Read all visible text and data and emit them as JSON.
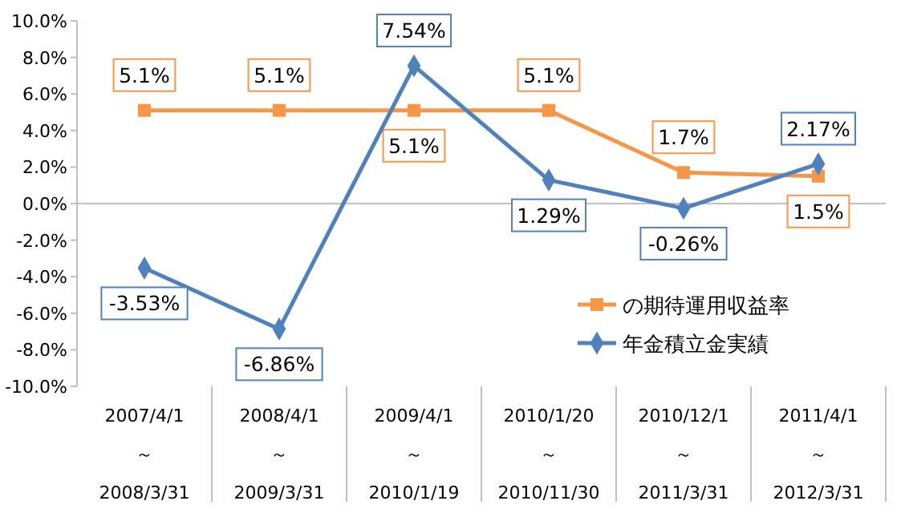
{
  "chart_data": {
    "type": "line",
    "categories": [
      "2007/4/1\n～\n2008/3/31",
      "2008/4/1\n～\n2009/3/31",
      "2009/4/1\n～\n2010/1/19",
      "2010/1/20\n～\n2010/11/30",
      "2010/12/1\n～\n2011/3/31",
      "2011/4/1\n～\n2012/3/31"
    ],
    "series": [
      {
        "name": "の期待運用収益率",
        "color": "#f79646",
        "marker": "square",
        "values": [
          5.1,
          5.1,
          5.1,
          5.1,
          1.7,
          1.5
        ],
        "value_labels": [
          "5.1%",
          "5.1%",
          "5.1%",
          "5.1%",
          "1.7%",
          "1.5%"
        ]
      },
      {
        "name": "年金積立金実績",
        "color": "#4f81bd",
        "marker": "diamond",
        "values": [
          -3.53,
          -6.86,
          7.54,
          1.29,
          -0.26,
          2.17
        ],
        "value_labels": [
          "-3.53%",
          "-6.86%",
          "7.54%",
          "1.29%",
          "-0.26%",
          "2.17%"
        ]
      }
    ],
    "ylim": [
      -10,
      10
    ],
    "yticks": [
      {
        "value": -10,
        "label": "-10.0%"
      },
      {
        "value": -8,
        "label": "-8.0%"
      },
      {
        "value": -6,
        "label": "-6.0%"
      },
      {
        "value": -4,
        "label": "-4.0%"
      },
      {
        "value": -2,
        "label": "-2.0%"
      },
      {
        "value": 0,
        "label": "0.0%"
      },
      {
        "value": 2,
        "label": "2.0%"
      },
      {
        "value": 4,
        "label": "4.0%"
      },
      {
        "value": 6,
        "label": "6.0%"
      },
      {
        "value": 8,
        "label": "8.0%"
      },
      {
        "value": 10,
        "label": "10.0%"
      }
    ],
    "legend": "bottom right"
  }
}
